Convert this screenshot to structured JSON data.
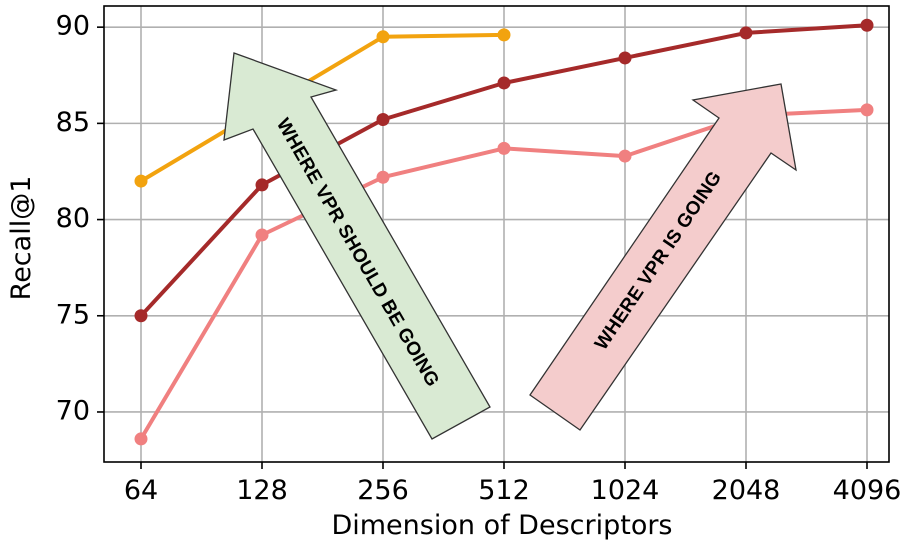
{
  "chart_data": {
    "type": "line",
    "xlabel": "Dimension of Descriptors",
    "ylabel": "Recall@1",
    "x_scale": "log2",
    "x": [
      64,
      128,
      256,
      512,
      1024,
      2048,
      4096
    ],
    "x_tick_labels": [
      "64",
      "128",
      "256",
      "512",
      "1024",
      "2048",
      "4096"
    ],
    "y_ticks": [
      70,
      75,
      80,
      85,
      90
    ],
    "ylim": [
      67.4,
      91.1
    ],
    "grid": true,
    "series": [
      {
        "color": "#f2a30f",
        "x": [
          64,
          256,
          512
        ],
        "values": [
          82.0,
          89.5,
          89.6
        ]
      },
      {
        "color": "#a52a2a",
        "x": [
          64,
          128,
          256,
          512,
          1024,
          2048,
          4096
        ],
        "values": [
          75.0,
          81.8,
          85.2,
          87.1,
          88.4,
          89.7,
          90.1
        ]
      },
      {
        "color": "#f08080",
        "x": [
          64,
          128,
          256,
          512,
          1024,
          2048,
          4096
        ],
        "values": [
          68.6,
          79.2,
          82.2,
          83.7,
          83.3,
          85.4,
          85.7
        ]
      }
    ],
    "annotations": [
      {
        "text": "WHERE VPR SHOULD BE GOING",
        "fill": "#d9ead3"
      },
      {
        "text": "WHERE VPR IS GOING",
        "fill": "#f4cccc"
      }
    ]
  }
}
